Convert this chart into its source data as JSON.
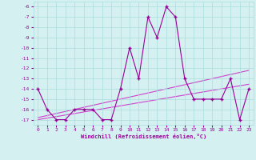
{
  "x": [
    0,
    1,
    2,
    3,
    4,
    5,
    6,
    7,
    8,
    9,
    10,
    11,
    12,
    13,
    14,
    15,
    16,
    17,
    18,
    19,
    20,
    21,
    22,
    23
  ],
  "y_main": [
    -14,
    -16,
    -17,
    -17,
    -16,
    -16,
    -16,
    -17,
    -17,
    -14,
    -10,
    -13,
    -7,
    -9,
    -6,
    -7,
    -13,
    -15,
    -15,
    -15,
    -15,
    -13,
    -17,
    -14
  ],
  "y_trend1": [
    -16.8,
    -16.6,
    -16.4,
    -16.2,
    -16.0,
    -15.8,
    -15.6,
    -15.4,
    -15.2,
    -15.0,
    -14.8,
    -14.6,
    -14.4,
    -14.2,
    -14.0,
    -13.8,
    -13.6,
    -13.4,
    -13.2,
    -13.0,
    -12.8,
    -12.6,
    -12.4,
    -12.2
  ],
  "y_trend2": [
    -17.0,
    -16.85,
    -16.7,
    -16.55,
    -16.4,
    -16.25,
    -16.1,
    -15.95,
    -15.8,
    -15.65,
    -15.5,
    -15.35,
    -15.2,
    -15.05,
    -14.9,
    -14.75,
    -14.6,
    -14.45,
    -14.3,
    -14.15,
    -14.0,
    -13.85,
    -13.7,
    -13.55
  ],
  "line_color": "#990099",
  "trend_color": "#cc44cc",
  "background_color": "#d5f0f0",
  "grid_color": "#aadddd",
  "xlabel": "Windchill (Refroidissement éolien,°C)",
  "ylim": [
    -17.5,
    -5.5
  ],
  "xlim": [
    -0.5,
    23.5
  ],
  "yticks": [
    -6,
    -7,
    -8,
    -9,
    -10,
    -11,
    -12,
    -13,
    -14,
    -15,
    -16,
    -17
  ],
  "xticks": [
    0,
    1,
    2,
    3,
    4,
    5,
    6,
    7,
    8,
    9,
    10,
    11,
    12,
    13,
    14,
    15,
    16,
    17,
    18,
    19,
    20,
    21,
    22,
    23
  ],
  "marker": "+",
  "markersize": 3,
  "linewidth": 0.8
}
